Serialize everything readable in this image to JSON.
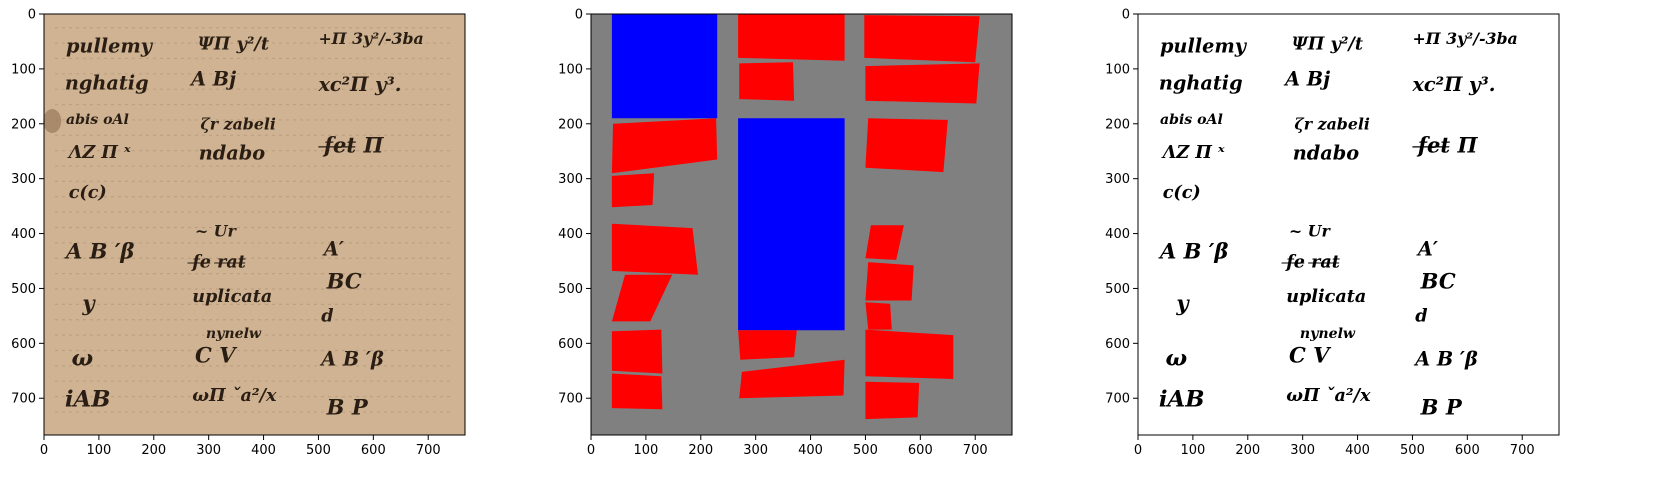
{
  "panels": [
    {
      "kind": "manuscript",
      "background": "#cfb392",
      "ink": "#2a1e14",
      "x_ticks": [
        "0",
        "100",
        "200",
        "300",
        "400",
        "500",
        "600",
        "700"
      ],
      "y_ticks": [
        "0",
        "100",
        "200",
        "300",
        "400",
        "500",
        "600",
        "700"
      ]
    },
    {
      "kind": "segmentation",
      "background": "#808080",
      "colors": {
        "text": "#ff0000",
        "math": "#0000ff"
      },
      "x_ticks": [
        "0",
        "100",
        "200",
        "300",
        "400",
        "500",
        "600",
        "700"
      ],
      "y_ticks": [
        "0",
        "100",
        "200",
        "300",
        "400",
        "500",
        "600",
        "700"
      ]
    },
    {
      "kind": "binarized",
      "background": "#ffffff",
      "ink": "#000000",
      "x_ticks": [
        "0",
        "100",
        "200",
        "300",
        "400",
        "500",
        "600",
        "700"
      ],
      "y_ticks": [
        "0",
        "100",
        "200",
        "300",
        "400",
        "500",
        "600",
        "700"
      ]
    }
  ],
  "handwriting": [
    "pullemy",
    "ΨΠ y²/t",
    "+Π 3y²/-3ba",
    "nghatig",
    "A Bj",
    "xc²Π y³.",
    "abis oAl",
    "ζr zabeli",
    "ΛZ Π ˣ",
    "ndabo",
    "f̶e̶t̶ Π",
    "c(c)",
    "A B ′β",
    "~ Ur",
    "A′",
    "f̶e̶ r̶a̶t̶",
    "BC",
    "y",
    "uplicata",
    "d",
    "nynelw",
    "ω",
    "C V",
    "A B ′β",
    "ωΠ ˇa²/x",
    "iAB",
    "B P"
  ],
  "chart_data": {
    "type": "image_grid",
    "extent": {
      "x": [
        0,
        767
      ],
      "y": [
        767,
        0
      ]
    },
    "segmentation_regions": [
      {
        "label": "math",
        "poly": [
          [
            38,
            0
          ],
          [
            230,
            0
          ],
          [
            230,
            190
          ],
          [
            38,
            190
          ]
        ]
      },
      {
        "label": "math",
        "poly": [
          [
            268,
            190
          ],
          [
            462,
            190
          ],
          [
            462,
            576
          ],
          [
            268,
            576
          ]
        ]
      },
      {
        "label": "text",
        "poly": [
          [
            268,
            0
          ],
          [
            462,
            0
          ],
          [
            462,
            85
          ],
          [
            268,
            80
          ]
        ]
      },
      {
        "label": "text",
        "poly": [
          [
            270,
            90
          ],
          [
            368,
            88
          ],
          [
            370,
            158
          ],
          [
            270,
            155
          ]
        ]
      },
      {
        "label": "text",
        "poly": [
          [
            498,
            2
          ],
          [
            708,
            4
          ],
          [
            700,
            88
          ],
          [
            498,
            80
          ]
        ]
      },
      {
        "label": "text",
        "poly": [
          [
            500,
            95
          ],
          [
            708,
            90
          ],
          [
            702,
            163
          ],
          [
            500,
            158
          ]
        ]
      },
      {
        "label": "text",
        "poly": [
          [
            40,
            200
          ],
          [
            228,
            190
          ],
          [
            230,
            265
          ],
          [
            38,
            290
          ]
        ]
      },
      {
        "label": "text",
        "poly": [
          [
            38,
            295
          ],
          [
            115,
            290
          ],
          [
            112,
            348
          ],
          [
            38,
            352
          ]
        ]
      },
      {
        "label": "text",
        "poly": [
          [
            505,
            190
          ],
          [
            650,
            193
          ],
          [
            642,
            288
          ],
          [
            500,
            280
          ]
        ]
      },
      {
        "label": "text",
        "poly": [
          [
            38,
            382
          ],
          [
            185,
            390
          ],
          [
            195,
            475
          ],
          [
            38,
            468
          ]
        ]
      },
      {
        "label": "text",
        "poly": [
          [
            62,
            475
          ],
          [
            148,
            475
          ],
          [
            108,
            560
          ],
          [
            38,
            560
          ]
        ]
      },
      {
        "label": "text",
        "poly": [
          [
            38,
            578
          ],
          [
            128,
            575
          ],
          [
            130,
            655
          ],
          [
            38,
            650
          ]
        ]
      },
      {
        "label": "text",
        "poly": [
          [
            38,
            655
          ],
          [
            128,
            660
          ],
          [
            130,
            720
          ],
          [
            38,
            718
          ]
        ]
      },
      {
        "label": "text",
        "poly": [
          [
            268,
            576
          ],
          [
            375,
            576
          ],
          [
            370,
            625
          ],
          [
            272,
            630
          ]
        ]
      },
      {
        "label": "text",
        "poly": [
          [
            275,
            652
          ],
          [
            462,
            630
          ],
          [
            460,
            695
          ],
          [
            270,
            700
          ]
        ]
      },
      {
        "label": "text",
        "poly": [
          [
            510,
            385
          ],
          [
            570,
            385
          ],
          [
            556,
            448
          ],
          [
            500,
            445
          ]
        ]
      },
      {
        "label": "text",
        "poly": [
          [
            505,
            452
          ],
          [
            588,
            458
          ],
          [
            584,
            522
          ],
          [
            500,
            522
          ]
        ]
      },
      {
        "label": "text",
        "poly": [
          [
            500,
            525
          ],
          [
            545,
            528
          ],
          [
            548,
            575
          ],
          [
            505,
            575
          ]
        ]
      },
      {
        "label": "text",
        "poly": [
          [
            500,
            575
          ],
          [
            660,
            585
          ],
          [
            660,
            665
          ],
          [
            500,
            660
          ]
        ]
      },
      {
        "label": "text",
        "poly": [
          [
            500,
            670
          ],
          [
            598,
            672
          ],
          [
            595,
            735
          ],
          [
            500,
            738
          ]
        ]
      }
    ]
  }
}
